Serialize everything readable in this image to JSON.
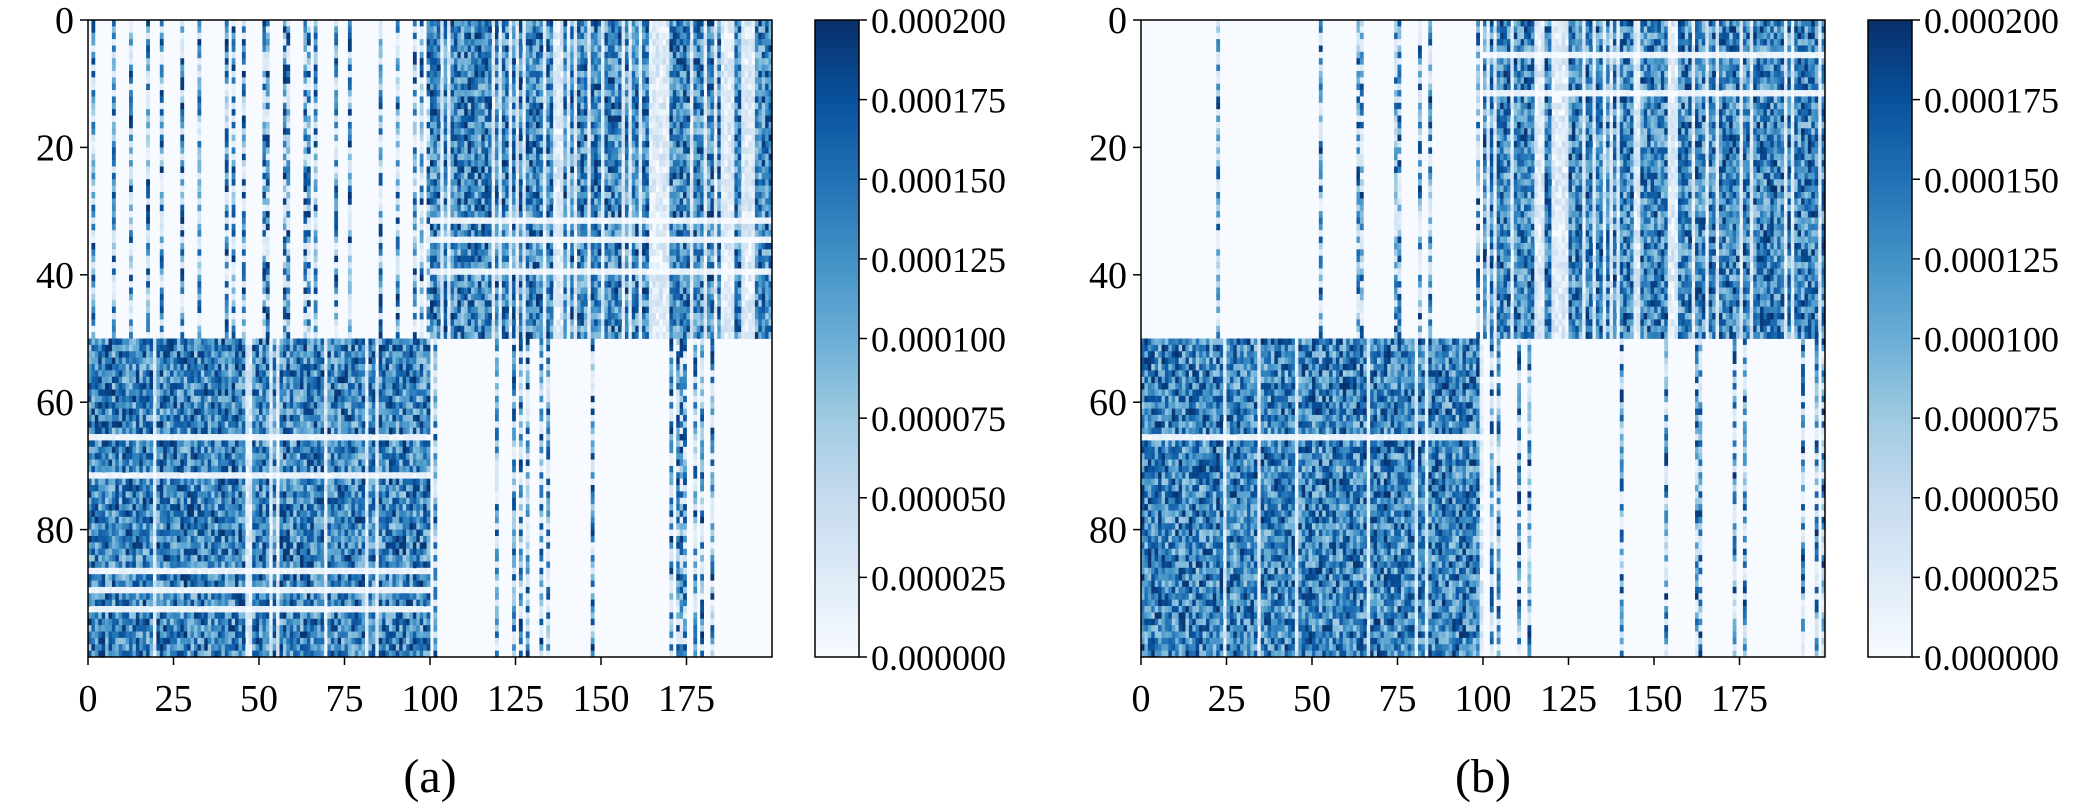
{
  "chart_data": [
    {
      "type": "heatmap",
      "panel_label": "(a)",
      "colormap": "Blues",
      "x_range": [
        0,
        200
      ],
      "y_range": [
        0,
        100
      ],
      "x_ticks": [
        0,
        25,
        50,
        75,
        100,
        125,
        150,
        175
      ],
      "y_ticks": [
        0,
        20,
        40,
        60,
        80
      ],
      "colorbar": {
        "range": [
          0,
          0.0002
        ],
        "ticks": [
          "0.000000",
          "0.000025",
          "0.000050",
          "0.000075",
          "0.000100",
          "0.000125",
          "0.000150",
          "0.000175",
          "0.000200"
        ]
      },
      "blocks": [
        {
          "x": [
            0,
            100
          ],
          "y": [
            0,
            50
          ],
          "density": 0.22,
          "level": "low"
        },
        {
          "x": [
            100,
            200
          ],
          "y": [
            0,
            50
          ],
          "density": 0.55,
          "level": "high"
        },
        {
          "x": [
            0,
            100
          ],
          "y": [
            50,
            100
          ],
          "density": 0.75,
          "level": "high"
        },
        {
          "x": [
            100,
            200
          ],
          "y": [
            50,
            100
          ],
          "density": 0.22,
          "level": "low"
        }
      ],
      "grid": false
    },
    {
      "type": "heatmap",
      "panel_label": "(b)",
      "colormap": "Blues",
      "x_range": [
        0,
        200
      ],
      "y_range": [
        0,
        100
      ],
      "x_ticks": [
        0,
        25,
        50,
        75,
        100,
        125,
        150,
        175
      ],
      "y_ticks": [
        0,
        20,
        40,
        60,
        80
      ],
      "colorbar": {
        "range": [
          0,
          0.0002
        ],
        "ticks": [
          "0.000000",
          "0.000025",
          "0.000050",
          "0.000075",
          "0.000100",
          "0.000125",
          "0.000150",
          "0.000175",
          "0.000200"
        ]
      },
      "blocks": [
        {
          "x": [
            0,
            100
          ],
          "y": [
            0,
            50
          ],
          "density": 0.12,
          "level": "low"
        },
        {
          "x": [
            100,
            200
          ],
          "y": [
            0,
            50
          ],
          "density": 0.55,
          "level": "high"
        },
        {
          "x": [
            0,
            100
          ],
          "y": [
            50,
            100
          ],
          "density": 0.75,
          "level": "high"
        },
        {
          "x": [
            100,
            200
          ],
          "y": [
            50,
            100
          ],
          "density": 0.12,
          "level": "low"
        }
      ],
      "grid": false
    }
  ],
  "colors": {
    "blues": [
      "#f7fbff",
      "#deebf7",
      "#c6dbef",
      "#9ecae1",
      "#6baed6",
      "#4292c6",
      "#2171b5",
      "#08519c",
      "#08306b"
    ]
  }
}
